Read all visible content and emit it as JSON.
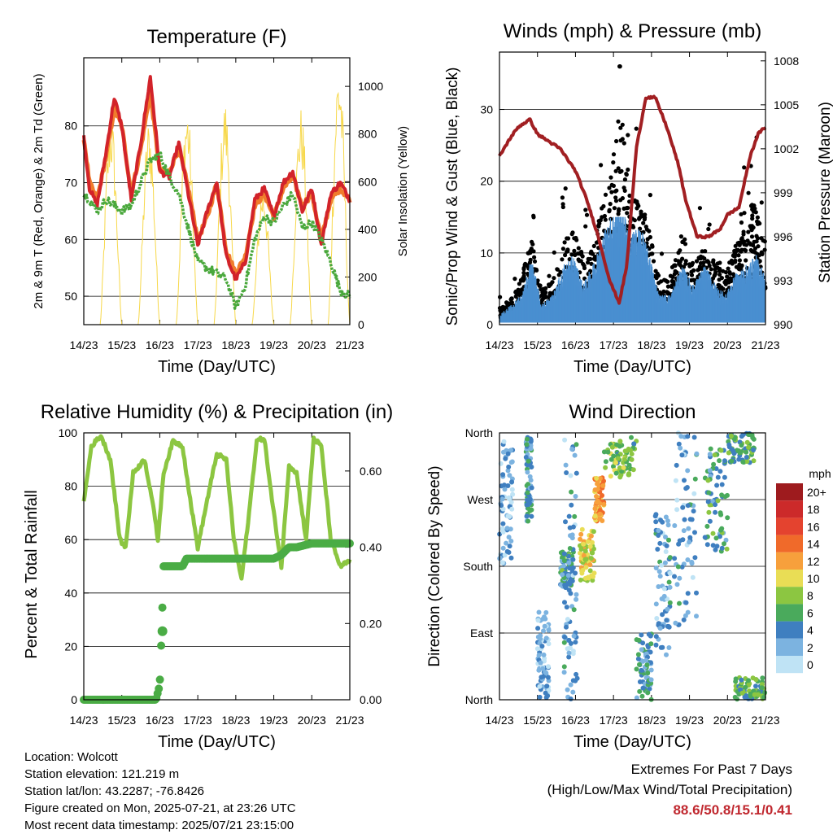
{
  "chart_data": [
    {
      "id": "temperature",
      "type": "line",
      "title": "Temperature (F)",
      "xlabel": "Time (Day/UTC)",
      "ylabel": "2m & 9m T (Red, Orange) & 2m Td (Green)",
      "y2label": "Solar Insolation (Yellow)",
      "x_ticks": [
        "14/23",
        "15/23",
        "16/23",
        "17/23",
        "18/23",
        "19/23",
        "20/23",
        "21/23"
      ],
      "xlim": [
        0,
        7
      ],
      "ylim": [
        45,
        92
      ],
      "y_ticks": [
        50,
        60,
        70,
        80
      ],
      "y2lim": [
        0,
        1120
      ],
      "y2_ticks": [
        0,
        200,
        400,
        600,
        800,
        1000
      ],
      "grid": "horizontal",
      "series": [
        {
          "name": "9m T",
          "color": "#f07c2c",
          "x": [
            0,
            0.15,
            0.35,
            0.6,
            0.8,
            1.0,
            1.25,
            1.5,
            1.75,
            2.0,
            2.25,
            2.5,
            2.75,
            3.0,
            3.25,
            3.5,
            3.75,
            4.0,
            4.25,
            4.5,
            4.75,
            5.0,
            5.25,
            5.5,
            5.75,
            6.0,
            6.25,
            6.5,
            6.75,
            7.0
          ],
          "values": [
            78,
            70,
            67,
            75,
            83,
            80,
            68,
            76,
            86,
            72,
            72,
            76,
            69,
            60,
            64,
            70,
            58,
            54,
            57,
            66,
            68,
            64,
            69,
            71,
            66,
            68,
            60,
            67,
            69,
            67
          ]
        },
        {
          "name": "2m T",
          "color": "#d2232a",
          "x": [
            0,
            0.15,
            0.35,
            0.6,
            0.8,
            1.0,
            1.25,
            1.5,
            1.75,
            2.0,
            2.25,
            2.5,
            2.75,
            3.0,
            3.25,
            3.5,
            3.75,
            4.0,
            4.25,
            4.5,
            4.75,
            5.0,
            5.25,
            5.5,
            5.75,
            6.0,
            6.25,
            6.5,
            6.75,
            7.0
          ],
          "values": [
            78,
            69,
            66,
            76,
            85,
            80,
            67,
            77,
            88.6,
            72,
            71,
            77,
            68,
            59,
            65,
            70,
            57,
            53,
            56,
            67,
            69,
            64,
            70,
            72,
            65,
            69,
            59,
            68,
            70,
            67
          ]
        },
        {
          "name": "2m Td",
          "color": "#4aa83c",
          "x": [
            0,
            0.15,
            0.35,
            0.6,
            0.8,
            1.0,
            1.25,
            1.5,
            1.75,
            2.0,
            2.25,
            2.5,
            2.75,
            3.0,
            3.25,
            3.5,
            3.75,
            4.0,
            4.25,
            4.5,
            4.75,
            5.0,
            5.25,
            5.5,
            5.75,
            6.0,
            6.25,
            6.5,
            6.75,
            7.0
          ],
          "values": [
            68,
            67,
            65,
            67,
            66,
            65,
            66,
            70,
            74,
            75,
            71,
            68,
            62,
            56,
            55,
            54,
            53,
            48,
            52,
            60,
            64,
            63,
            66,
            68,
            62,
            63,
            60,
            56,
            51,
            50
          ]
        }
      ],
      "solar": {
        "name": "Solar Insolation",
        "color": "#f7d84a",
        "peaks": [
          900,
          870,
          940,
          950,
          600,
          920,
          1120,
          900
        ]
      }
    },
    {
      "id": "winds",
      "type": "scatter",
      "title": "Winds (mph) & Pressure (mb)",
      "xlabel": "Time (Day/UTC)",
      "ylabel": "Sonic/Prop Wind & Gust (Blue, Black)",
      "y2label": "Station Pressure (Maroon)",
      "x_ticks": [
        "14/23",
        "15/23",
        "16/23",
        "17/23",
        "18/23",
        "19/23",
        "20/23",
        "21/23"
      ],
      "xlim": [
        0,
        7
      ],
      "ylim": [
        0,
        38
      ],
      "y_ticks": [
        0,
        10,
        20,
        30
      ],
      "y2lim": [
        990,
        1008.6
      ],
      "y2_ticks": [
        990,
        993,
        996,
        999,
        1002,
        1005,
        1008
      ],
      "grid": "horizontal",
      "wind": {
        "name": "Sonic/Prop Wind",
        "color": "#4a8fd0",
        "x": [
          0,
          0.3,
          0.6,
          0.85,
          1.1,
          1.4,
          1.7,
          1.95,
          2.2,
          2.45,
          2.7,
          2.95,
          3.2,
          3.45,
          3.7,
          3.95,
          4.2,
          4.5,
          4.8,
          5.1,
          5.4,
          5.7,
          5.95,
          6.2,
          6.5,
          6.75,
          7.0
        ],
        "values": [
          1,
          2,
          3,
          7,
          2,
          3,
          6,
          7,
          4,
          6,
          9,
          11,
          13,
          9,
          10,
          7,
          3,
          3,
          6,
          4,
          6,
          4,
          3,
          5,
          6,
          7,
          5
        ]
      },
      "gust": {
        "name": "Gust",
        "color": "#000000",
        "x": [
          0,
          0.3,
          0.6,
          0.85,
          1.1,
          1.4,
          1.7,
          1.95,
          2.2,
          2.45,
          2.7,
          2.95,
          3.2,
          3.45,
          3.7,
          3.95,
          4.2,
          4.5,
          4.8,
          5.1,
          5.4,
          5.7,
          5.95,
          6.2,
          6.5,
          6.75,
          7.0
        ],
        "values": [
          2,
          3,
          6,
          10,
          4,
          5,
          10,
          11,
          8,
          9,
          14,
          18,
          26,
          15,
          14,
          11,
          5,
          6,
          11,
          7,
          9,
          7,
          6,
          9,
          13,
          15,
          9
        ]
      },
      "pressure": {
        "name": "Station Pressure",
        "color": "#a11f22",
        "x": [
          0,
          0.3,
          0.5,
          0.8,
          1.0,
          1.3,
          1.6,
          2.0,
          2.3,
          2.6,
          2.9,
          3.15,
          3.35,
          3.6,
          3.85,
          4.1,
          4.4,
          4.7,
          4.9,
          5.2,
          5.5,
          5.8,
          6.0,
          6.3,
          6.6,
          6.8,
          7.0
        ],
        "values": [
          1001.5,
          1002.8,
          1003.5,
          1004,
          1003,
          1002.5,
          1002,
          1000.5,
          998.5,
          996,
          993,
          991.5,
          994,
          1002,
          1005.5,
          1005.5,
          1003.5,
          1001,
          998.5,
          996,
          996,
          996.5,
          997.5,
          998,
          1001.5,
          1003,
          1003.5
        ]
      }
    },
    {
      "id": "humidity",
      "type": "line",
      "title": "Relative Humidity (%) & Precipitation (in)",
      "xlabel": "Time (Day/UTC)",
      "ylabel": "Percent & Total Rainfall",
      "x_ticks": [
        "14/23",
        "15/23",
        "16/23",
        "17/23",
        "18/23",
        "19/23",
        "20/23",
        "21/23"
      ],
      "xlim": [
        0,
        7
      ],
      "ylim": [
        0,
        100
      ],
      "y_ticks": [
        0,
        20,
        40,
        60,
        80,
        100
      ],
      "y2lim": [
        0,
        0.7
      ],
      "y2_ticks": [
        "0.00",
        "0.20",
        "0.40",
        "0.60"
      ],
      "grid": "horizontal",
      "rh": {
        "name": "Relative Humidity",
        "color": "#8cc641",
        "x": [
          0,
          0.2,
          0.45,
          0.7,
          0.95,
          1.1,
          1.3,
          1.6,
          1.8,
          1.95,
          2.1,
          2.35,
          2.6,
          2.8,
          3.0,
          3.25,
          3.5,
          3.75,
          3.95,
          4.15,
          4.35,
          4.55,
          4.75,
          4.95,
          5.2,
          5.4,
          5.6,
          5.85,
          6.05,
          6.25,
          6.5,
          6.75,
          7.0
        ],
        "values": [
          74,
          95,
          99,
          90,
          60,
          57,
          85,
          90,
          75,
          60,
          85,
          97,
          95,
          75,
          57,
          75,
          92,
          90,
          60,
          45,
          70,
          97,
          98,
          75,
          50,
          88,
          85,
          60,
          98,
          95,
          60,
          50,
          52
        ]
      },
      "precip": {
        "name": "Total Precipitation",
        "color": "#4aac45",
        "x": [
          0,
          0.5,
          1.0,
          1.5,
          1.9,
          2.0,
          2.0,
          2.05,
          2.1,
          2.2,
          2.6,
          2.7,
          3.0,
          3.5,
          4.0,
          4.5,
          5.0,
          5.2,
          5.4,
          5.6,
          6.0,
          6.5,
          7.0
        ],
        "values": [
          0,
          0,
          0,
          0,
          0,
          0.04,
          0.04,
          0.18,
          0.35,
          0.35,
          0.35,
          0.37,
          0.37,
          0.37,
          0.37,
          0.37,
          0.37,
          0.38,
          0.4,
          0.4,
          0.41,
          0.41,
          0.41
        ]
      }
    },
    {
      "id": "direction",
      "type": "scatter",
      "title": "Wind Direction",
      "xlabel": "Time (Day/UTC)",
      "ylabel": "Direction (Colored By Speed)",
      "x_ticks": [
        "14/23",
        "15/23",
        "16/23",
        "17/23",
        "18/23",
        "19/23",
        "20/23",
        "21/23"
      ],
      "xlim": [
        0,
        7
      ],
      "ylim": [
        0,
        360
      ],
      "y_ticks": [
        "North",
        "East",
        "South",
        "West",
        "North"
      ],
      "grid": "horizontal",
      "colorbar": {
        "title": "mph",
        "labels": [
          "20+",
          "18",
          "16",
          "14",
          "12",
          "10",
          "8",
          "6",
          "4",
          "2",
          "0"
        ],
        "colors": [
          "#9e1b1e",
          "#cc2a2a",
          "#e4432f",
          "#f06a2a",
          "#f7a03c",
          "#e9dd55",
          "#8cc641",
          "#4aaa5c",
          "#3f7fc0",
          "#7cb3e0",
          "#bfe3f5"
        ]
      },
      "clusters": [
        {
          "x": [
            0.0,
            0.35
          ],
          "dir": [
            180,
            350
          ],
          "speed": 2
        },
        {
          "x": [
            0.7,
            0.85
          ],
          "dir": [
            240,
            355
          ],
          "speed": 4
        },
        {
          "x": [
            1.0,
            1.3
          ],
          "dir": [
            0,
            120
          ],
          "speed": 2
        },
        {
          "x": [
            1.6,
            1.95
          ],
          "dir": [
            150,
            200
          ],
          "speed": 5
        },
        {
          "x": [
            1.7,
            2.05
          ],
          "dir": [
            0,
            360
          ],
          "speed": 3
        },
        {
          "x": [
            2.1,
            2.5
          ],
          "dir": [
            160,
            230
          ],
          "speed": 10
        },
        {
          "x": [
            2.5,
            2.75
          ],
          "dir": [
            240,
            300
          ],
          "speed": 12
        },
        {
          "x": [
            2.75,
            3.6
          ],
          "dir": [
            300,
            355
          ],
          "speed": 7
        },
        {
          "x": [
            3.6,
            4.0
          ],
          "dir": [
            0,
            90
          ],
          "speed": 4
        },
        {
          "x": [
            4.1,
            4.5
          ],
          "dir": [
            60,
            250
          ],
          "speed": 3
        },
        {
          "x": [
            4.6,
            5.2
          ],
          "dir": [
            90,
            360
          ],
          "speed": 3
        },
        {
          "x": [
            5.4,
            6.0
          ],
          "dir": [
            200,
            340
          ],
          "speed": 5
        },
        {
          "x": [
            6.0,
            6.7
          ],
          "dir": [
            320,
            360
          ],
          "speed": 6
        },
        {
          "x": [
            6.2,
            7.0
          ],
          "dir": [
            0,
            30
          ],
          "speed": 6
        }
      ]
    }
  ],
  "footer": {
    "location": "Location: Wolcott",
    "elevation": "Station elevation: 121.219 m",
    "latlon": "Station lat/lon: 43.2287; -76.8426",
    "created": "Figure created on Mon, 2025-07-21, at 23:26 UTC",
    "recent": "Most recent data timestamp: 2025/07/21 23:15:00",
    "extremes_title": "Extremes For Past 7 Days",
    "extremes_sub": "(High/Low/Max Wind/Total Precipitation)",
    "extremes_values": "88.6/50.8/15.1/0.41"
  }
}
